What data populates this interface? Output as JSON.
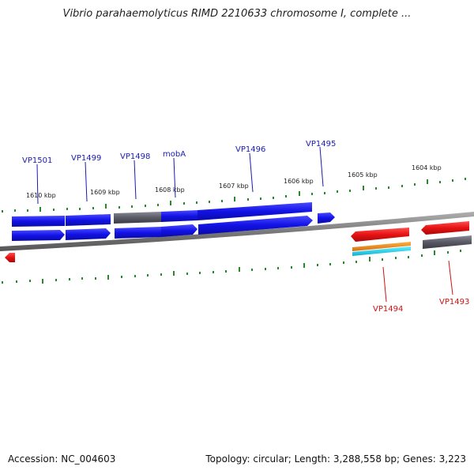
{
  "header": {
    "title": "Vibrio parahaemolyticus RIMD 2210633 chromosome I, complete ..."
  },
  "footer": {
    "accession": "Accession: NC_004603",
    "summary": "Topology: circular; Length: 3,288,558 bp; Genes: 3,223"
  },
  "colors": {
    "forward_gene": "#1010e0",
    "reverse_gene": "#e01010",
    "pseudo_gene": "#5a5a6a",
    "tick": "#2a8a2a",
    "backbone": "#8a8a8a",
    "label_forward": "#1a1ab0",
    "label_reverse": "#d01010"
  },
  "ruler": {
    "ticks": [
      "1610 kbp",
      "1609 kbp",
      "1608 kbp",
      "1607 kbp",
      "1606 kbp",
      "1605 kbp",
      "1604 kbp"
    ]
  },
  "genes": [
    {
      "label": "VP1501",
      "strand": "forward"
    },
    {
      "label": "VP1499",
      "strand": "forward"
    },
    {
      "label": "VP1498",
      "strand": "forward"
    },
    {
      "label": "mobA",
      "strand": "forward"
    },
    {
      "label": "VP1496",
      "strand": "forward"
    },
    {
      "label": "VP1495",
      "strand": "forward"
    },
    {
      "label": "VP1494",
      "strand": "reverse"
    },
    {
      "label": "VP1493",
      "strand": "reverse"
    }
  ]
}
